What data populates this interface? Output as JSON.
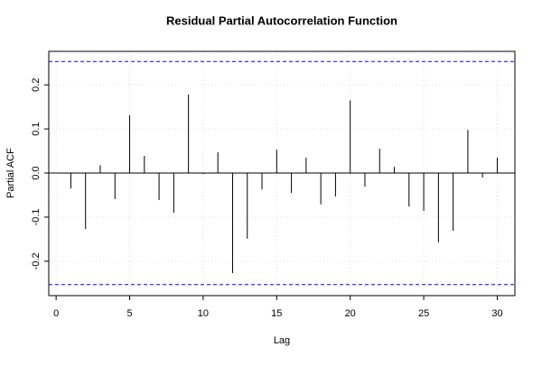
{
  "chart_data": {
    "type": "bar",
    "title": "Residual Partial Autocorrelation Function",
    "xlabel": "Lag",
    "ylabel": "Partial ACF",
    "x": [
      1,
      2,
      3,
      4,
      5,
      6,
      7,
      8,
      9,
      10,
      11,
      12,
      13,
      14,
      15,
      16,
      17,
      18,
      19,
      20,
      21,
      22,
      23,
      24,
      25,
      26,
      27,
      28,
      29,
      30
    ],
    "values": [
      -0.035,
      -0.127,
      0.018,
      -0.059,
      0.131,
      0.039,
      -0.061,
      -0.09,
      0.178,
      -0.002,
      0.047,
      -0.227,
      -0.149,
      -0.037,
      0.053,
      -0.045,
      0.035,
      -0.071,
      -0.053,
      0.165,
      -0.031,
      0.055,
      0.014,
      -0.076,
      -0.086,
      -0.157,
      -0.131,
      0.098,
      -0.01,
      0.035
    ],
    "color": "#000000",
    "confidence_limits": [
      0.253,
      -0.253
    ],
    "confidence_color": "#0000ff",
    "xlim": [
      -0.5,
      31.2
    ],
    "ylim": [
      -0.278,
      0.276
    ],
    "xticks": [
      0,
      5,
      10,
      15,
      20,
      25,
      30
    ],
    "yticks": [
      -0.2,
      -0.1,
      {
        "value": 0,
        "label": "0.0"
      },
      0.1,
      0.2
    ],
    "grid": true
  }
}
